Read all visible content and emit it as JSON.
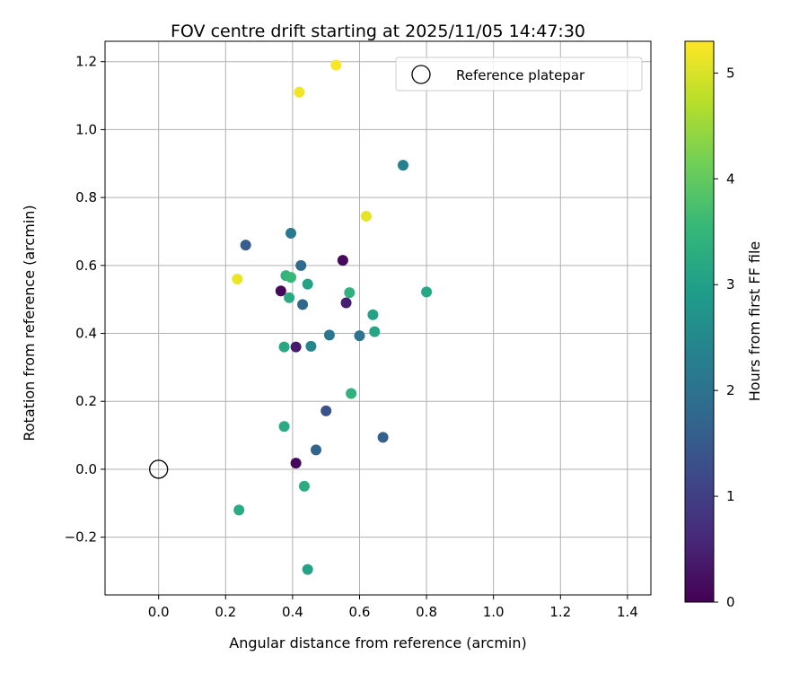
{
  "chart_data": {
    "type": "scatter",
    "title": "FOV centre drift starting at 2025/11/05 14:47:30",
    "xlabel": "Angular distance from reference (arcmin)",
    "ylabel": "Rotation from reference (arcmin)",
    "xlim": [
      -0.16,
      1.47
    ],
    "ylim": [
      -0.37,
      1.26
    ],
    "xticks": [
      0.0,
      0.2,
      0.4,
      0.6,
      0.8,
      1.0,
      1.2,
      1.4
    ],
    "xtick_labels": [
      "0.0",
      "0.2",
      "0.4",
      "0.6",
      "0.8",
      "1.0",
      "1.2",
      "1.4"
    ],
    "yticks": [
      -0.2,
      0.0,
      0.2,
      0.4,
      0.6,
      0.8,
      1.0,
      1.2
    ],
    "ytick_labels": [
      "−0.2",
      "0.0",
      "0.2",
      "0.4",
      "0.6",
      "0.8",
      "1.0",
      "1.2"
    ],
    "grid": true,
    "legend": {
      "label": "Reference platepar",
      "position": "top-right"
    },
    "reference_point": {
      "x": 0.0,
      "y": 0.0
    },
    "colorbar": {
      "label": "Hours from first FF file",
      "range": [
        0,
        5.3
      ],
      "ticks": [
        0,
        1,
        2,
        3,
        4,
        5
      ],
      "tick_labels": [
        "0",
        "1",
        "2",
        "3",
        "4",
        "5"
      ],
      "colormap": "viridis",
      "colormap_stops": [
        "#440154",
        "#482878",
        "#3e4989",
        "#31688e",
        "#26828e",
        "#1f9e89",
        "#35b779",
        "#6ece58",
        "#b5de2b",
        "#fde725"
      ]
    },
    "points": [
      {
        "x": 0.53,
        "y": 1.19,
        "hours": 5.25
      },
      {
        "x": 0.42,
        "y": 1.11,
        "hours": 5.2
      },
      {
        "x": 0.73,
        "y": 0.895,
        "hours": 2.3
      },
      {
        "x": 0.62,
        "y": 0.745,
        "hours": 5.1
      },
      {
        "x": 0.26,
        "y": 0.66,
        "hours": 1.55
      },
      {
        "x": 0.395,
        "y": 0.695,
        "hours": 2.15
      },
      {
        "x": 0.425,
        "y": 0.6,
        "hours": 1.8
      },
      {
        "x": 0.55,
        "y": 0.615,
        "hours": 0.1
      },
      {
        "x": 0.235,
        "y": 0.56,
        "hours": 5.15
      },
      {
        "x": 0.38,
        "y": 0.57,
        "hours": 3.45
      },
      {
        "x": 0.395,
        "y": 0.565,
        "hours": 3.55
      },
      {
        "x": 0.445,
        "y": 0.545,
        "hours": 3.05
      },
      {
        "x": 0.365,
        "y": 0.525,
        "hours": 0.1
      },
      {
        "x": 0.39,
        "y": 0.505,
        "hours": 3.2
      },
      {
        "x": 0.57,
        "y": 0.52,
        "hours": 3.4
      },
      {
        "x": 0.8,
        "y": 0.522,
        "hours": 3.15
      },
      {
        "x": 0.43,
        "y": 0.485,
        "hours": 1.8
      },
      {
        "x": 0.56,
        "y": 0.49,
        "hours": 0.45
      },
      {
        "x": 0.64,
        "y": 0.455,
        "hours": 3.05
      },
      {
        "x": 0.645,
        "y": 0.405,
        "hours": 3.1
      },
      {
        "x": 0.51,
        "y": 0.395,
        "hours": 2.05
      },
      {
        "x": 0.6,
        "y": 0.393,
        "hours": 2.0
      },
      {
        "x": 0.375,
        "y": 0.36,
        "hours": 3.2
      },
      {
        "x": 0.41,
        "y": 0.36,
        "hours": 0.4
      },
      {
        "x": 0.455,
        "y": 0.362,
        "hours": 2.45
      },
      {
        "x": 0.575,
        "y": 0.223,
        "hours": 3.4
      },
      {
        "x": 0.5,
        "y": 0.172,
        "hours": 1.35
      },
      {
        "x": 0.375,
        "y": 0.126,
        "hours": 3.25
      },
      {
        "x": 0.47,
        "y": 0.057,
        "hours": 1.7
      },
      {
        "x": 0.67,
        "y": 0.094,
        "hours": 1.65
      },
      {
        "x": 0.41,
        "y": 0.018,
        "hours": 0.1
      },
      {
        "x": 0.435,
        "y": -0.05,
        "hours": 3.3
      },
      {
        "x": 0.24,
        "y": -0.12,
        "hours": 3.25
      },
      {
        "x": 0.445,
        "y": -0.295,
        "hours": 3.05
      }
    ]
  }
}
